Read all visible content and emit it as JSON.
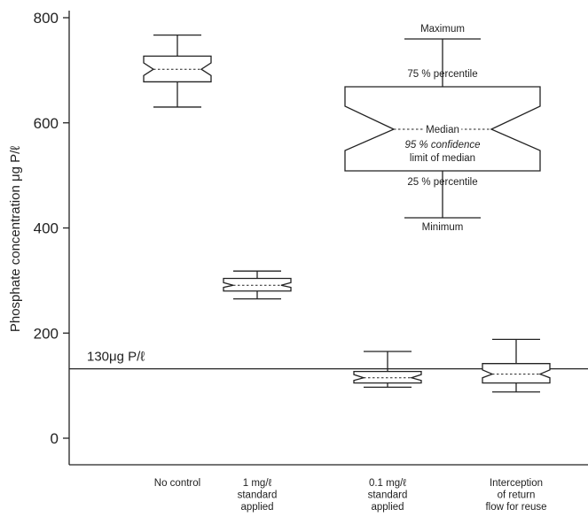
{
  "chart_data": {
    "type": "boxplot",
    "ylabel": "Phosphate concentration μg P/ℓ",
    "ylim": [
      -40,
      810
    ],
    "yticks": [
      0,
      200,
      400,
      600,
      800
    ],
    "categories": [
      [
        "No control"
      ],
      [
        "1 mg/ℓ",
        "standard",
        "applied"
      ],
      [
        "0.1 mg/ℓ",
        "standard",
        "applied"
      ],
      [
        "Interception",
        "of return",
        "flow for reuse"
      ]
    ],
    "boxes": [
      {
        "min": 630,
        "q1": 678,
        "ci_low": 690,
        "median": 702,
        "ci_high": 714,
        "q3": 727,
        "max": 767
      },
      {
        "min": 265,
        "q1": 280,
        "ci_low": 287,
        "median": 291,
        "ci_high": 296,
        "q3": 304,
        "max": 318
      },
      {
        "min": 97,
        "q1": 105,
        "ci_low": 110,
        "median": 115,
        "ci_high": 121,
        "q3": 127,
        "max": 165
      },
      {
        "min": 88,
        "q1": 105,
        "ci_low": 115,
        "median": 122,
        "ci_high": 130,
        "q3": 142,
        "max": 188
      }
    ],
    "reference_line": {
      "value": 132,
      "label": "130μg P/ℓ"
    },
    "legend": {
      "maximum": "Maximum",
      "q3": "75 % percentile",
      "median": "Median",
      "ci": [
        "95 % confidence",
        "limit of median"
      ],
      "q1": "25 % percentile",
      "minimum": "Minimum"
    }
  }
}
